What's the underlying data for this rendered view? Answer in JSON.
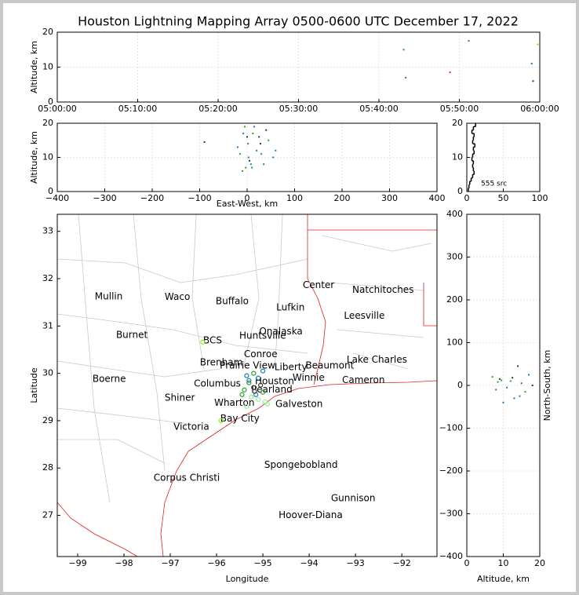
{
  "chart_data": [
    {
      "type": "scatter",
      "title": "Houston Lightning Mapping Array 0500-0600 UTC December 17, 2022",
      "ylabel": "Altitude, km",
      "x": [
        "05:43:05",
        "05:43:20",
        "05:48:50",
        "05:51:10",
        "05:59:00",
        "05:59:10",
        "05:59:45"
      ],
      "y": [
        15,
        7,
        8.5,
        17.5,
        11,
        6,
        16.5
      ],
      "colors": [
        "#2ca02c",
        "#1f77b4",
        "#d62728",
        "#1f77b4",
        "#1f77b4",
        "#333333",
        "#bcbd22"
      ],
      "xlim": [
        "05:00:00",
        "06:00:00"
      ],
      "xticks": [
        "05:00:00",
        "05:10:00",
        "05:20:00",
        "05:30:00",
        "05:40:00",
        "05:50:00",
        "06:00:00"
      ],
      "ylim": [
        0,
        20
      ],
      "yticks": [
        0,
        10,
        20
      ],
      "grid": true
    },
    {
      "type": "scatter",
      "xlabel": "East-West, km",
      "ylabel": "Altitude, km",
      "x": [
        -8,
        -5,
        2,
        5,
        10,
        20,
        25,
        30,
        35,
        40,
        45,
        55,
        -20,
        -10,
        0,
        15,
        -15,
        8,
        28,
        60,
        -90,
        12,
        3,
        -3
      ],
      "y": [
        17,
        19,
        14,
        9,
        7,
        12,
        16,
        11,
        8,
        18,
        15,
        10,
        13,
        6,
        16,
        19,
        11,
        8,
        14,
        12,
        14.5,
        17,
        10,
        7
      ],
      "colors": [
        "#1f77b4",
        "#2ca02c",
        "#1f77b4",
        "#333333",
        "#2ca02c",
        "#1f77b4",
        "#333333",
        "#2ca02c",
        "#1f77b4",
        "#333333",
        "#2ca02c",
        "#1f77b4",
        "#1f77b4",
        "#2ca02c",
        "#333333",
        "#1f77b4",
        "#2ca02c",
        "#1f77b4",
        "#333333",
        "#1f77b4",
        "#333333",
        "#2ca02c",
        "#1f77b4",
        "#2ca02c"
      ],
      "xlim": [
        -400,
        400
      ],
      "xticks": [
        {
          "value": -400,
          "label": "−400"
        },
        {
          "value": -300,
          "label": "−300"
        },
        {
          "value": -200,
          "label": "−200"
        },
        {
          "value": -100,
          "label": "−100"
        },
        0,
        100,
        200,
        300,
        400
      ],
      "ylim": [
        0,
        20
      ],
      "yticks": [
        0,
        10,
        20
      ],
      "grid": true
    },
    {
      "type": "histogram",
      "annotation": "555 src",
      "bins": [
        0,
        1,
        2,
        3,
        4,
        5,
        6,
        7,
        8,
        9,
        10,
        11,
        12,
        13,
        14,
        15,
        16,
        17,
        18,
        19,
        20
      ],
      "values": [
        2,
        3,
        4,
        6,
        8,
        10,
        9,
        8,
        9,
        7,
        8,
        10,
        9,
        11,
        8,
        9,
        10,
        7,
        9,
        12
      ],
      "color": "#000000",
      "xlim": [
        0,
        100
      ],
      "xticks": [
        0,
        50,
        100
      ],
      "ylim": [
        0,
        20
      ],
      "yticks": [
        0,
        10,
        20
      ],
      "grid": true
    },
    {
      "type": "map",
      "xlabel": "Longitude",
      "ylabel": "Latitude",
      "xlim": [
        -99.44,
        -91.24
      ],
      "ylim": [
        26.13,
        33.36
      ],
      "xticks": [
        {
          "value": -99,
          "label": "−99"
        },
        {
          "value": -98,
          "label": "−98"
        },
        {
          "value": -97,
          "label": "−97"
        },
        {
          "value": -96,
          "label": "−96"
        },
        {
          "value": -95,
          "label": "−95"
        },
        {
          "value": -94,
          "label": "−94"
        },
        {
          "value": -93,
          "label": "−93"
        },
        {
          "value": -92,
          "label": "−92"
        }
      ],
      "yticks": [
        27,
        28,
        29,
        30,
        31,
        32,
        33
      ],
      "cities": [
        {
          "name": "Mullin",
          "lon": -98.63,
          "lat": 31.62,
          "color": "#f28c28"
        },
        {
          "name": "Waco",
          "lon": -97.12,
          "lat": 31.61,
          "color": "#000000"
        },
        {
          "name": "Buffalo",
          "lon": -96.02,
          "lat": 31.52,
          "color": "#000000"
        },
        {
          "name": "Center",
          "lon": -94.14,
          "lat": 31.86,
          "color": "#000000"
        },
        {
          "name": "Natchitoches",
          "lon": -93.07,
          "lat": 31.76,
          "color": "#000000"
        },
        {
          "name": "Lufkin",
          "lon": -94.71,
          "lat": 31.39,
          "color": "#000000"
        },
        {
          "name": "Leesville",
          "lon": -93.25,
          "lat": 31.21,
          "color": "#000000"
        },
        {
          "name": "Burnet",
          "lon": -98.17,
          "lat": 30.81,
          "color": "#000000"
        },
        {
          "name": "BCS",
          "lon": -96.29,
          "lat": 30.69,
          "color": "#8b0000"
        },
        {
          "name": "Huntsville",
          "lon": -95.51,
          "lat": 30.79,
          "color": "#000000"
        },
        {
          "name": "Onalaska",
          "lon": -95.08,
          "lat": 30.88,
          "color": "#000000"
        },
        {
          "name": "Conroe",
          "lon": -95.41,
          "lat": 30.4,
          "color": "#000000"
        },
        {
          "name": "Brenham",
          "lon": -96.36,
          "lat": 30.23,
          "color": "#000000"
        },
        {
          "name": "Prairie View",
          "lon": -95.93,
          "lat": 30.16,
          "color": "#000000"
        },
        {
          "name": "Liberty",
          "lon": -94.75,
          "lat": 30.13,
          "color": "#000000"
        },
        {
          "name": "Beaumont",
          "lon": -94.08,
          "lat": 30.16,
          "color": "#000000"
        },
        {
          "name": "Lake Charles",
          "lon": -93.19,
          "lat": 30.28,
          "color": "#000000"
        },
        {
          "name": "Boerne",
          "lon": -98.68,
          "lat": 29.88,
          "color": "#000000"
        },
        {
          "name": "Columbus",
          "lon": -96.49,
          "lat": 29.78,
          "color": "#000000"
        },
        {
          "name": "Houston",
          "lon": -95.17,
          "lat": 29.83,
          "color": "#f28c28"
        },
        {
          "name": "Winnie",
          "lon": -94.36,
          "lat": 29.9,
          "color": "#000000"
        },
        {
          "name": "Cameron",
          "lon": -93.29,
          "lat": 29.85,
          "color": "#000000"
        },
        {
          "name": "Pearland",
          "lon": -95.25,
          "lat": 29.65,
          "color": "#000000"
        },
        {
          "name": "Shiner",
          "lon": -97.12,
          "lat": 29.48,
          "color": "#000000"
        },
        {
          "name": "Wharton",
          "lon": -96.05,
          "lat": 29.37,
          "color": "#000000"
        },
        {
          "name": "Galveston",
          "lon": -94.73,
          "lat": 29.35,
          "color": "#000000"
        },
        {
          "name": "Bay City",
          "lon": -95.92,
          "lat": 29.04,
          "color": "#000000"
        },
        {
          "name": "Victoria",
          "lon": -96.93,
          "lat": 28.87,
          "color": "#000000"
        },
        {
          "name": "Spongebobland",
          "lon": -94.97,
          "lat": 28.06,
          "color": "#0000ee"
        },
        {
          "name": "Corpus Christi",
          "lon": -97.36,
          "lat": 27.79,
          "color": "#000000"
        },
        {
          "name": "Gunnison",
          "lon": -93.53,
          "lat": 27.36,
          "color": "#0000ee"
        },
        {
          "name": "Hoover-Diana",
          "lon": -94.66,
          "lat": 27.0,
          "color": "#0000ee"
        }
      ],
      "x": [
        -95.35,
        -95.3,
        -95.2,
        -95.1,
        -95.0,
        -95.25,
        -95.15,
        -95.4,
        -95.05,
        -94.95,
        -95.3,
        -95.2,
        -95.1,
        -95.45,
        -94.9,
        -96.3,
        -95.9,
        -95.0,
        -95.35,
        -95.18
      ],
      "y": [
        29.95,
        29.8,
        29.7,
        29.9,
        29.6,
        29.5,
        29.55,
        29.65,
        29.75,
        29.4,
        29.85,
        30.0,
        29.45,
        29.55,
        29.35,
        30.66,
        29.0,
        30.05,
        29.3,
        29.62
      ],
      "colors": [
        "#1f77b4",
        "#2ca02c",
        "#333333",
        "#1f77b4",
        "#2ca02c",
        "#90ee90",
        "#1f77b4",
        "#2ca02c",
        "#333333",
        "#90ee90",
        "#1f77b4",
        "#2ca02c",
        "#90ee90",
        "#2ca02c",
        "#90ee90",
        "#7cfc00",
        "#7cfc00",
        "#1f77b4",
        "#90ee90",
        "#333333"
      ],
      "grid": false
    },
    {
      "type": "scatter",
      "xlabel": "Altitude, km",
      "ylabel": "North-South, km",
      "x": [
        7,
        8,
        9,
        10,
        12,
        13,
        14,
        15,
        16,
        17,
        18,
        11,
        9.5,
        12.5,
        14.5,
        8.5
      ],
      "y": [
        20,
        -10,
        15,
        -40,
        10,
        -30,
        45,
        5,
        -15,
        25,
        0,
        -5,
        12,
        18,
        -25,
        8
      ],
      "colors": [
        "#2ca02c",
        "#1f77b4",
        "#333333",
        "#1f77b4",
        "#2ca02c",
        "#1f77b4",
        "#333333",
        "#1f77b4",
        "#2ca02c",
        "#1f77b4",
        "#333333",
        "#1f77b4",
        "#2ca02c",
        "#333333",
        "#1f77b4",
        "#2ca02c"
      ],
      "xlim": [
        0,
        20
      ],
      "xticks": [
        0,
        10,
        20
      ],
      "ylim": [
        -400,
        400
      ],
      "yticks": [
        {
          "value": -400,
          "label": "−400"
        },
        {
          "value": -300,
          "label": "−300"
        },
        {
          "value": -200,
          "label": "−200"
        },
        {
          "value": -100,
          "label": "−100"
        },
        0,
        100,
        200,
        300,
        400
      ],
      "grid": true
    }
  ]
}
